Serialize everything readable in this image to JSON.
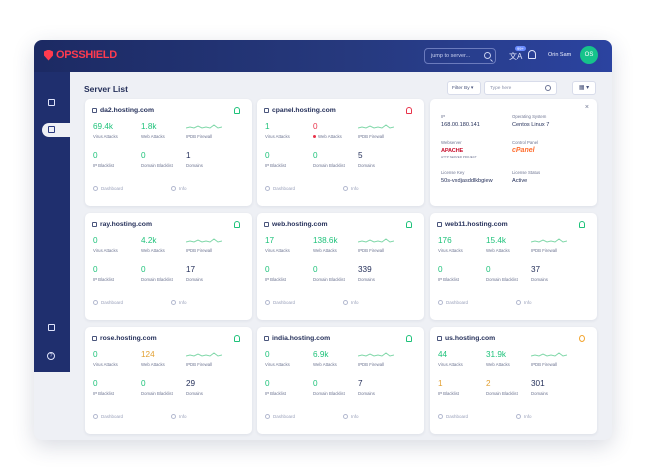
{
  "app": {
    "brand": "OPSSHIELD",
    "search_placeholder": "jump to server...",
    "user_name": "Orin Sam",
    "user_initials": "OS",
    "notif_badge": "99+"
  },
  "page": {
    "title": "Server List",
    "filter_label": "Filter By",
    "search_placeholder": "Type here",
    "view_label": "▦ ▾"
  },
  "labels": {
    "virus": "Virus Attacks",
    "web": "Web Attacks",
    "ipdb": "IPDB Firewall",
    "ip": "IP Blacklist",
    "domain_bl": "Domain Blacklist",
    "domains": "Domains",
    "dashboard": "Dashboard",
    "info": "Info"
  },
  "servers": [
    {
      "name": "da2.hosting.com",
      "virus": "69.4k",
      "web": "1.8k",
      "ip": "0",
      "domain_bl": "0",
      "domains": "1",
      "bell": "green"
    },
    {
      "name": "cpanel.hosting.com",
      "virus": "1",
      "web": "0",
      "ip": "0",
      "domain_bl": "0",
      "domains": "5",
      "bell": "red"
    },
    {
      "name": "ray.hosting.com",
      "virus": "0",
      "web": "4.2k",
      "ip": "0",
      "domain_bl": "0",
      "domains": "17",
      "bell": "green"
    },
    {
      "name": "web.hosting.com",
      "virus": "17",
      "web": "138.6k",
      "ip": "0",
      "domain_bl": "0",
      "domains": "339",
      "bell": "green"
    },
    {
      "name": "web11.hosting.com",
      "virus": "176",
      "web": "15.4k",
      "ip": "0",
      "domain_bl": "0",
      "domains": "37",
      "bell": "green"
    },
    {
      "name": "rose.hosting.com",
      "virus": "0",
      "web": "124",
      "ip": "0",
      "domain_bl": "0",
      "domains": "29",
      "bell": "green"
    },
    {
      "name": "india.hosting.com",
      "virus": "0",
      "web": "6.9k",
      "ip": "0",
      "domain_bl": "0",
      "domains": "7",
      "bell": "green"
    },
    {
      "name": "us.hosting.com",
      "virus": "44",
      "web": "31.9k",
      "ip": "1",
      "domain_bl": "2",
      "domains": "301",
      "bell": "orange"
    }
  ],
  "detail": {
    "ip_label": "IP",
    "ip_value": "168.00.180.141",
    "os_label": "Operating System",
    "os_value": "Centos Linux 7",
    "webserver_label": "Webserver",
    "webserver_value": "APACHE",
    "webserver_sub": "HTTP SERVER PROJECT",
    "panel_label": "Control Panel",
    "panel_value": "cPanel",
    "license_key_label": "License Key",
    "license_key_value": "50s-vxdjasddlkbgiew",
    "license_status_label": "License Status",
    "license_status_value": "Active",
    "close": "×"
  },
  "colors": {
    "green": "#1ec27a",
    "red": "#e8334a",
    "orange": "#e2a032",
    "navy": "#1f2f6e"
  },
  "icons": [
    "search-icon",
    "translate-icon",
    "bell-icon",
    "dashboard-icon",
    "servers-icon",
    "docs-icon",
    "help-icon",
    "grid-icon"
  ]
}
